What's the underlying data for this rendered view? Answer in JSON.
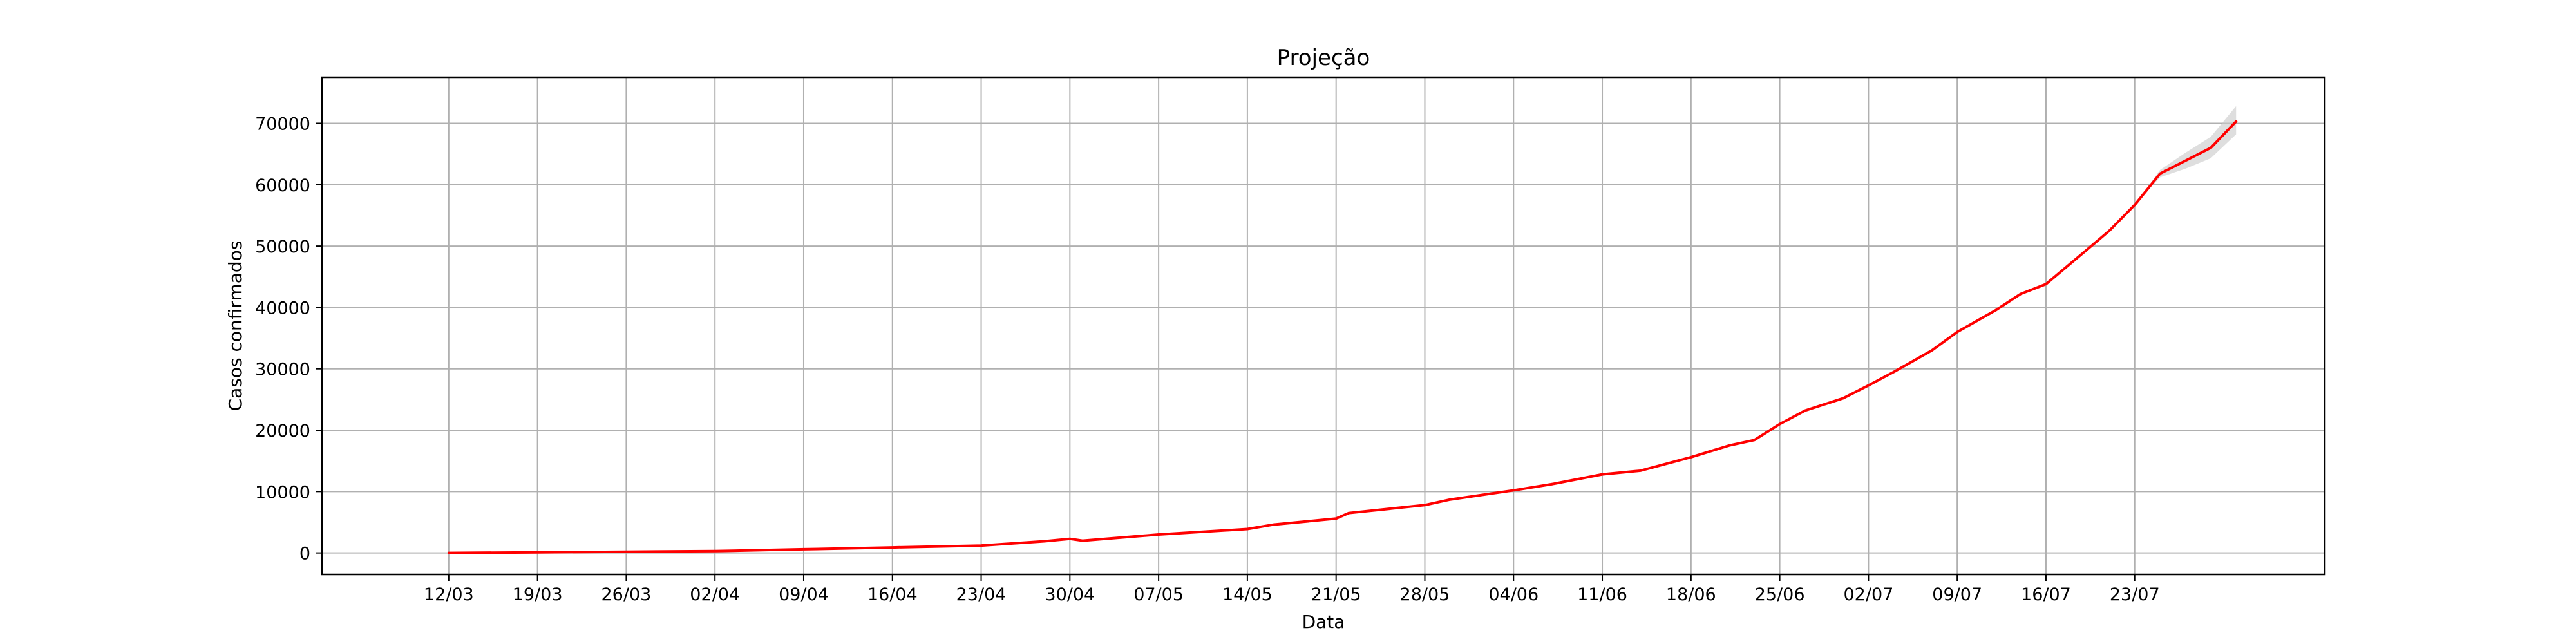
{
  "chart_data": {
    "type": "line",
    "title": "Projeção",
    "xlabel": "Data",
    "ylabel": "Casos confirmados",
    "grid": true,
    "x_tick_labels": [
      "12/03",
      "19/03",
      "26/03",
      "02/04",
      "09/04",
      "16/04",
      "23/04",
      "30/04",
      "07/05",
      "14/05",
      "21/05",
      "28/05",
      "04/06",
      "11/06",
      "18/06",
      "25/06",
      "02/07",
      "09/07",
      "16/07",
      "23/07"
    ],
    "y_ticks": [
      0,
      10000,
      20000,
      30000,
      40000,
      50000,
      60000,
      70000
    ],
    "y_tick_labels": [
      "0",
      "10000",
      "20000",
      "30000",
      "40000",
      "50000",
      "60000",
      "70000"
    ],
    "xlim": [
      "2020-03-02",
      "2020-08-07"
    ],
    "ylim": [
      -3500,
      77500
    ],
    "colors": {
      "line": "#ff0000",
      "band": "#c8c8c8"
    },
    "series": [
      {
        "x": [
          "2020-03-12",
          "2020-03-19",
          "2020-03-26",
          "2020-04-02",
          "2020-04-09",
          "2020-04-16",
          "2020-04-23",
          "2020-04-28",
          "2020-04-30",
          "2020-05-01",
          "2020-05-07",
          "2020-05-14",
          "2020-05-16",
          "2020-05-21",
          "2020-05-22",
          "2020-05-28",
          "2020-05-30",
          "2020-06-04",
          "2020-06-07",
          "2020-06-11",
          "2020-06-14",
          "2020-06-18",
          "2020-06-21",
          "2020-06-23",
          "2020-06-25",
          "2020-06-27",
          "2020-06-30",
          "2020-07-02",
          "2020-07-04",
          "2020-07-07",
          "2020-07-09",
          "2020-07-12",
          "2020-07-14",
          "2020-07-16",
          "2020-07-19",
          "2020-07-21",
          "2020-07-23",
          "2020-07-25",
          "2020-07-27",
          "2020-07-29",
          "2020-07-31"
        ],
        "y": [
          0,
          100,
          200,
          300,
          600,
          900,
          1200,
          1900,
          2300,
          2000,
          3000,
          3900,
          4600,
          5600,
          6500,
          7800,
          8700,
          10200,
          11200,
          12800,
          13400,
          15600,
          17500,
          18400,
          21000,
          23200,
          25200,
          27300,
          29500,
          33000,
          36000,
          39500,
          42200,
          43800,
          49000,
          52500,
          56700,
          61800,
          63900,
          66000,
          70300
        ]
      }
    ],
    "projection_band": {
      "x": [
        "2020-07-23",
        "2020-07-25",
        "2020-07-27",
        "2020-07-29",
        "2020-07-31"
      ],
      "lower": [
        56700,
        61200,
        62600,
        64300,
        68200
      ],
      "upper": [
        56700,
        62400,
        65200,
        67800,
        72800
      ]
    }
  }
}
